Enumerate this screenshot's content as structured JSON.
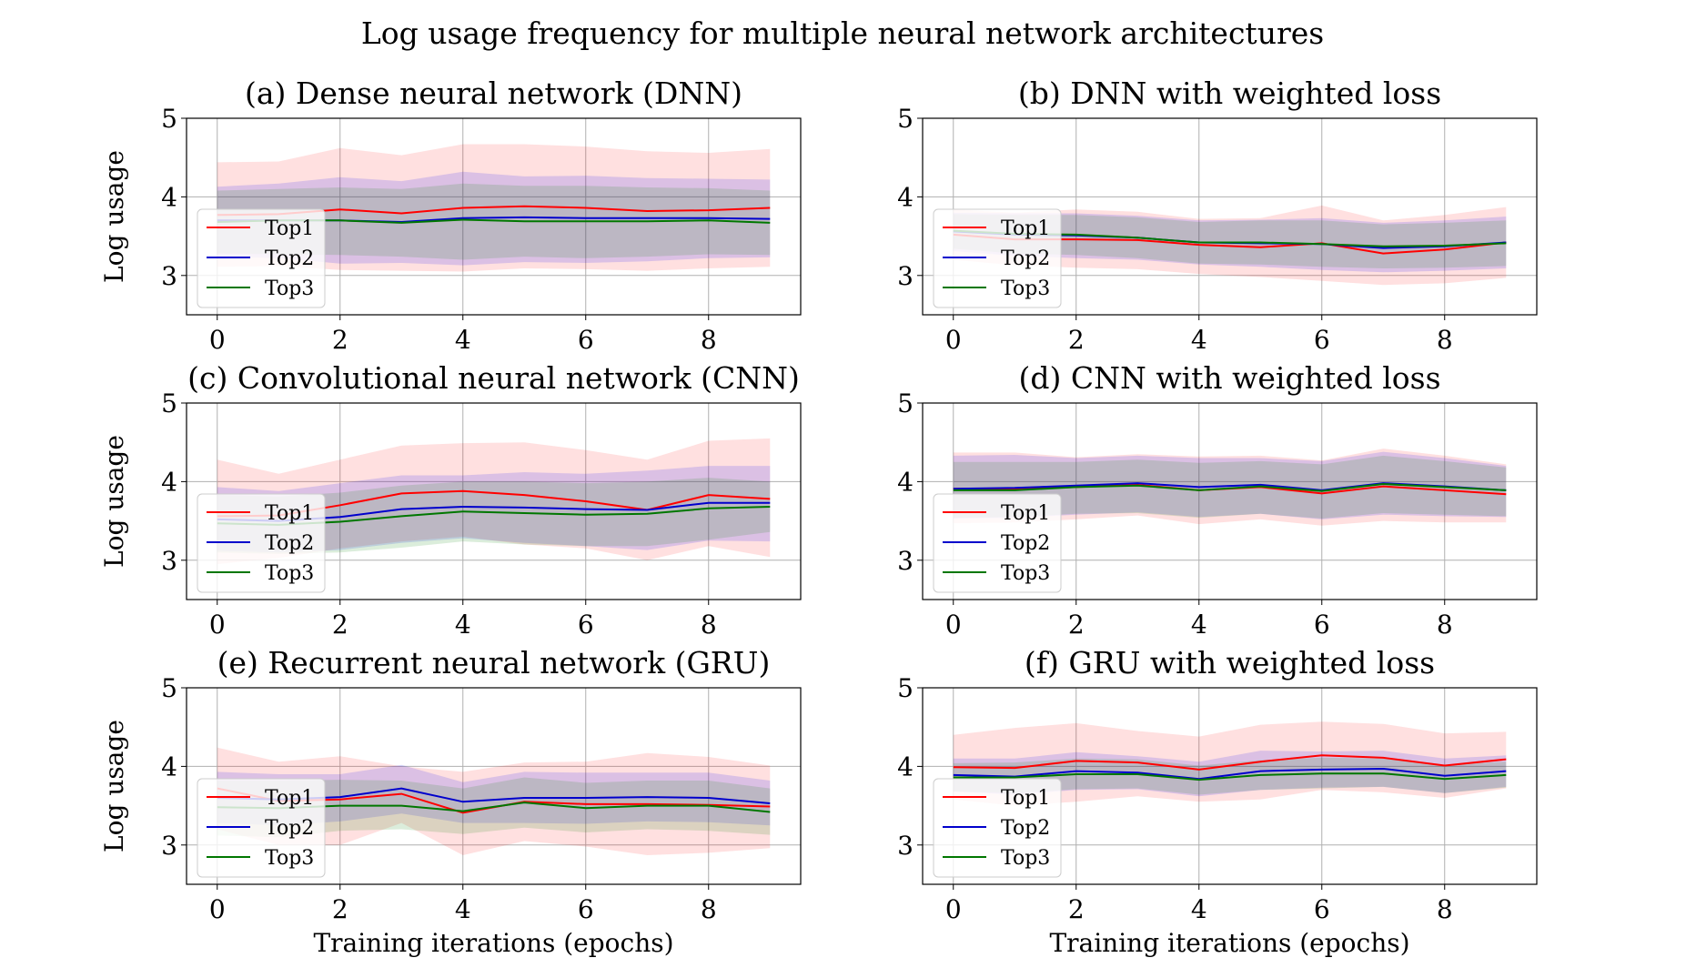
{
  "figure": {
    "title": "Log usage frequency for multiple neural network architectures"
  },
  "chart_data": [
    {
      "type": "line",
      "title": "(a) Dense neural network (DNN)",
      "xlabel": "",
      "ylabel": "Log usage",
      "xlim": [
        -0.5,
        9.5
      ],
      "ylim": [
        2.5,
        5
      ],
      "xticks": [
        "0",
        "2",
        "4",
        "6",
        "8"
      ],
      "yticks": [
        "3",
        "4",
        "5"
      ],
      "grid": true,
      "legend": "lower-left",
      "x": [
        0,
        1,
        2,
        3,
        4,
        5,
        6,
        7,
        8,
        9
      ],
      "series": [
        {
          "name": "Top1",
          "color": "#ff0000",
          "values": [
            3.77,
            3.78,
            3.84,
            3.79,
            3.86,
            3.88,
            3.86,
            3.82,
            3.83,
            3.86
          ],
          "lower": [
            3.11,
            3.12,
            3.07,
            3.06,
            3.05,
            3.09,
            3.08,
            3.06,
            3.09,
            3.11
          ],
          "upper": [
            4.44,
            4.45,
            4.62,
            4.53,
            4.67,
            4.67,
            4.64,
            4.58,
            4.56,
            4.61
          ]
        },
        {
          "name": "Top2",
          "color": "#0000cc",
          "values": [
            3.7,
            3.7,
            3.7,
            3.68,
            3.73,
            3.74,
            3.73,
            3.73,
            3.73,
            3.72
          ],
          "lower": [
            3.24,
            3.22,
            3.15,
            3.16,
            3.13,
            3.17,
            3.16,
            3.18,
            3.22,
            3.23
          ],
          "upper": [
            4.13,
            4.17,
            4.25,
            4.2,
            4.32,
            4.26,
            4.27,
            4.24,
            4.23,
            4.22
          ]
        },
        {
          "name": "Top3",
          "color": "#007700",
          "values": [
            3.68,
            3.7,
            3.7,
            3.67,
            3.71,
            3.69,
            3.69,
            3.69,
            3.7,
            3.67
          ],
          "lower": [
            3.28,
            3.27,
            3.26,
            3.24,
            3.2,
            3.24,
            3.22,
            3.24,
            3.27,
            3.26
          ],
          "upper": [
            4.08,
            4.1,
            4.12,
            4.1,
            4.17,
            4.14,
            4.14,
            4.12,
            4.11,
            4.08
          ]
        }
      ]
    },
    {
      "type": "line",
      "title": "(b) DNN with weighted loss",
      "xlabel": "",
      "ylabel": "",
      "xlim": [
        -0.5,
        9.5
      ],
      "ylim": [
        2.5,
        5
      ],
      "xticks": [
        "0",
        "2",
        "4",
        "6",
        "8"
      ],
      "yticks": [
        "3",
        "4",
        "5"
      ],
      "grid": true,
      "legend": "lower-left",
      "x": [
        0,
        1,
        2,
        3,
        4,
        5,
        6,
        7,
        8,
        9
      ],
      "series": [
        {
          "name": "Top1",
          "color": "#ff0000",
          "values": [
            3.52,
            3.46,
            3.46,
            3.45,
            3.39,
            3.36,
            3.41,
            3.28,
            3.33,
            3.42
          ],
          "lower": [
            3.2,
            3.13,
            3.1,
            3.08,
            3.02,
            2.98,
            2.93,
            2.88,
            2.9,
            2.97
          ],
          "upper": [
            3.84,
            3.8,
            3.84,
            3.81,
            3.72,
            3.73,
            3.89,
            3.7,
            3.77,
            3.87
          ]
        },
        {
          "name": "Top2",
          "color": "#0000cc",
          "values": [
            3.56,
            3.52,
            3.51,
            3.48,
            3.42,
            3.41,
            3.4,
            3.35,
            3.37,
            3.42
          ],
          "lower": [
            3.31,
            3.25,
            3.22,
            3.2,
            3.14,
            3.11,
            3.07,
            3.04,
            3.06,
            3.09
          ],
          "upper": [
            3.8,
            3.79,
            3.79,
            3.76,
            3.7,
            3.71,
            3.73,
            3.67,
            3.7,
            3.75
          ]
        },
        {
          "name": "Top3",
          "color": "#007700",
          "values": [
            3.57,
            3.53,
            3.52,
            3.48,
            3.42,
            3.42,
            3.4,
            3.37,
            3.38,
            3.41
          ],
          "lower": [
            3.34,
            3.28,
            3.26,
            3.22,
            3.15,
            3.14,
            3.11,
            3.09,
            3.1,
            3.12
          ],
          "upper": [
            3.78,
            3.77,
            3.77,
            3.74,
            3.68,
            3.7,
            3.7,
            3.65,
            3.67,
            3.7
          ]
        }
      ]
    },
    {
      "type": "line",
      "title": "(c) Convolutional neural network (CNN)",
      "xlabel": "",
      "ylabel": "Log usage",
      "xlim": [
        -0.5,
        9.5
      ],
      "ylim": [
        2.5,
        5
      ],
      "xticks": [
        "0",
        "2",
        "4",
        "6",
        "8"
      ],
      "yticks": [
        "3",
        "4",
        "5"
      ],
      "grid": true,
      "legend": "lower-left",
      "x": [
        0,
        1,
        2,
        3,
        4,
        5,
        6,
        7,
        8,
        9
      ],
      "series": [
        {
          "name": "Top1",
          "color": "#ff0000",
          "values": [
            3.56,
            3.57,
            3.7,
            3.85,
            3.88,
            3.83,
            3.75,
            3.64,
            3.83,
            3.78
          ],
          "lower": [
            2.95,
            3.03,
            3.15,
            3.24,
            3.3,
            3.2,
            3.15,
            3.0,
            3.18,
            3.04
          ],
          "upper": [
            4.28,
            4.1,
            4.28,
            4.46,
            4.49,
            4.5,
            4.4,
            4.28,
            4.52,
            4.55
          ]
        },
        {
          "name": "Top2",
          "color": "#0000cc",
          "values": [
            3.52,
            3.5,
            3.55,
            3.65,
            3.68,
            3.67,
            3.65,
            3.64,
            3.73,
            3.73
          ],
          "lower": [
            3.12,
            3.1,
            3.13,
            3.22,
            3.28,
            3.22,
            3.18,
            3.13,
            3.25,
            3.24
          ],
          "upper": [
            3.93,
            3.88,
            3.98,
            4.08,
            4.08,
            4.12,
            4.1,
            4.14,
            4.2,
            4.2
          ]
        },
        {
          "name": "Top3",
          "color": "#007700",
          "values": [
            3.47,
            3.45,
            3.49,
            3.56,
            3.62,
            3.6,
            3.58,
            3.59,
            3.66,
            3.68
          ],
          "lower": [
            3.1,
            3.08,
            3.1,
            3.16,
            3.24,
            3.2,
            3.18,
            3.18,
            3.26,
            3.36
          ],
          "upper": [
            3.83,
            3.81,
            3.86,
            3.95,
            4.0,
            4.0,
            3.98,
            4.0,
            4.05,
            4.0
          ]
        }
      ]
    },
    {
      "type": "line",
      "title": "(d) CNN with weighted loss",
      "xlabel": "",
      "ylabel": "",
      "xlim": [
        -0.5,
        9.5
      ],
      "ylim": [
        2.5,
        5
      ],
      "xticks": [
        "0",
        "2",
        "4",
        "6",
        "8"
      ],
      "yticks": [
        "3",
        "4",
        "5"
      ],
      "grid": true,
      "legend": "lower-left",
      "x": [
        0,
        1,
        2,
        3,
        4,
        5,
        6,
        7,
        8,
        9
      ],
      "series": [
        {
          "name": "Top1",
          "color": "#ff0000",
          "values": [
            3.91,
            3.91,
            3.93,
            3.96,
            3.89,
            3.93,
            3.85,
            3.94,
            3.89,
            3.84
          ],
          "lower": [
            3.47,
            3.48,
            3.52,
            3.57,
            3.46,
            3.52,
            3.44,
            3.5,
            3.48,
            3.48
          ],
          "upper": [
            4.37,
            4.37,
            4.31,
            4.35,
            4.32,
            4.33,
            4.27,
            4.42,
            4.33,
            4.22
          ]
        },
        {
          "name": "Top2",
          "color": "#0000cc",
          "values": [
            3.91,
            3.92,
            3.95,
            3.98,
            3.93,
            3.96,
            3.89,
            3.98,
            3.94,
            3.89
          ],
          "lower": [
            3.53,
            3.54,
            3.58,
            3.61,
            3.55,
            3.59,
            3.52,
            3.58,
            3.56,
            3.55
          ],
          "upper": [
            4.33,
            4.34,
            4.3,
            4.33,
            4.3,
            4.3,
            4.26,
            4.38,
            4.3,
            4.2
          ]
        },
        {
          "name": "Top3",
          "color": "#007700",
          "values": [
            3.89,
            3.89,
            3.93,
            3.95,
            3.89,
            3.94,
            3.88,
            3.97,
            3.93,
            3.89
          ],
          "lower": [
            3.54,
            3.55,
            3.59,
            3.6,
            3.54,
            3.59,
            3.53,
            3.6,
            3.58,
            3.56
          ],
          "upper": [
            4.25,
            4.25,
            4.25,
            4.28,
            4.24,
            4.26,
            4.22,
            4.33,
            4.26,
            4.18
          ]
        }
      ]
    },
    {
      "type": "line",
      "title": "(e) Recurrent neural network (GRU)",
      "xlabel": "Training iterations (epochs)",
      "ylabel": "Log usage",
      "xlim": [
        -0.5,
        9.5
      ],
      "ylim": [
        2.5,
        5
      ],
      "xticks": [
        "0",
        "2",
        "4",
        "6",
        "8"
      ],
      "yticks": [
        "3",
        "4",
        "5"
      ],
      "grid": true,
      "legend": "lower-left",
      "x": [
        0,
        1,
        2,
        3,
        4,
        5,
        6,
        7,
        8,
        9
      ],
      "series": [
        {
          "name": "Top1",
          "color": "#ff0000",
          "values": [
            3.72,
            3.56,
            3.58,
            3.65,
            3.41,
            3.55,
            3.52,
            3.52,
            3.51,
            3.49
          ],
          "lower": [
            3.2,
            3.0,
            3.0,
            3.28,
            2.87,
            3.05,
            2.98,
            2.87,
            2.9,
            2.96
          ],
          "upper": [
            4.24,
            4.06,
            4.13,
            4.0,
            3.93,
            4.05,
            4.06,
            4.17,
            4.12,
            4.01
          ]
        },
        {
          "name": "Top2",
          "color": "#0000cc",
          "values": [
            3.6,
            3.58,
            3.61,
            3.72,
            3.55,
            3.6,
            3.6,
            3.61,
            3.6,
            3.53
          ],
          "lower": [
            3.28,
            3.25,
            3.3,
            3.4,
            3.28,
            3.28,
            3.27,
            3.3,
            3.29,
            3.25
          ],
          "upper": [
            3.93,
            3.9,
            3.9,
            4.02,
            3.8,
            3.93,
            3.92,
            3.92,
            3.92,
            3.82
          ]
        },
        {
          "name": "Top3",
          "color": "#007700",
          "values": [
            3.48,
            3.47,
            3.5,
            3.5,
            3.43,
            3.54,
            3.47,
            3.5,
            3.5,
            3.42
          ],
          "lower": [
            3.12,
            3.1,
            3.18,
            3.2,
            3.14,
            3.22,
            3.16,
            3.2,
            3.18,
            3.13
          ],
          "upper": [
            3.82,
            3.82,
            3.83,
            3.82,
            3.72,
            3.86,
            3.79,
            3.82,
            3.82,
            3.72
          ]
        }
      ]
    },
    {
      "type": "line",
      "title": "(f) GRU with weighted loss",
      "xlabel": "Training iterations (epochs)",
      "ylabel": "",
      "xlim": [
        -0.5,
        9.5
      ],
      "ylim": [
        2.5,
        5
      ],
      "xticks": [
        "0",
        "2",
        "4",
        "6",
        "8"
      ],
      "yticks": [
        "3",
        "4",
        "5"
      ],
      "grid": true,
      "legend": "lower-left",
      "x": [
        0,
        1,
        2,
        3,
        4,
        5,
        6,
        7,
        8,
        9
      ],
      "series": [
        {
          "name": "Top1",
          "color": "#ff0000",
          "values": [
            3.99,
            3.98,
            4.07,
            4.05,
            3.96,
            4.06,
            4.14,
            4.11,
            4.01,
            4.09
          ],
          "lower": [
            3.58,
            3.5,
            3.55,
            3.62,
            3.55,
            3.58,
            3.7,
            3.67,
            3.6,
            3.72
          ],
          "upper": [
            4.4,
            4.49,
            4.55,
            4.45,
            4.38,
            4.53,
            4.57,
            4.54,
            4.42,
            4.44
          ]
        },
        {
          "name": "Top2",
          "color": "#0000cc",
          "values": [
            3.89,
            3.87,
            3.94,
            3.92,
            3.84,
            3.94,
            3.96,
            3.97,
            3.88,
            3.94
          ],
          "lower": [
            3.68,
            3.64,
            3.7,
            3.71,
            3.62,
            3.7,
            3.73,
            3.74,
            3.66,
            3.74
          ],
          "upper": [
            4.1,
            4.1,
            4.18,
            4.13,
            4.06,
            4.2,
            4.19,
            4.2,
            4.1,
            4.14
          ]
        },
        {
          "name": "Top3",
          "color": "#007700",
          "values": [
            3.86,
            3.86,
            3.9,
            3.9,
            3.83,
            3.89,
            3.91,
            3.91,
            3.84,
            3.89
          ],
          "lower": [
            3.68,
            3.66,
            3.71,
            3.72,
            3.64,
            3.7,
            3.72,
            3.74,
            3.66,
            3.73
          ],
          "upper": [
            4.04,
            4.05,
            4.1,
            4.09,
            4.01,
            4.08,
            4.11,
            4.1,
            4.02,
            4.06
          ]
        }
      ]
    }
  ]
}
